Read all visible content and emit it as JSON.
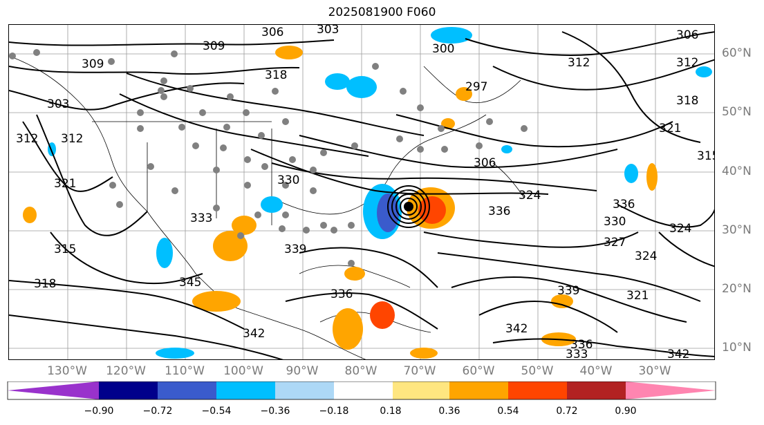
{
  "title": "2025081900 F060",
  "lon_labels": [
    "130°W",
    "120°W",
    "110°W",
    "100°W",
    "90°W",
    "80°W",
    "70°W",
    "60°W",
    "50°W",
    "40°W",
    "30°W"
  ],
  "lat_labels": [
    "60°N",
    "50°N",
    "40°N",
    "30°N",
    "20°N",
    "10°N"
  ],
  "contour_labels": [
    "306",
    "303",
    "309",
    "309",
    "303",
    "318",
    "312",
    "321",
    "315",
    "318",
    "312",
    "330",
    "333",
    "339",
    "345",
    "342",
    "336",
    "324",
    "306",
    "297",
    "324",
    "336",
    "327",
    "324",
    "321",
    "318",
    "312",
    "336",
    "330",
    "342",
    "339",
    "336",
    "333",
    "342",
    "321",
    "315",
    "312",
    "306",
    "300"
  ],
  "colorbar": {
    "ticks": [
      "−0.90",
      "−0.72",
      "−0.54",
      "−0.36",
      "−0.18",
      "0.18",
      "0.36",
      "0.54",
      "0.72",
      "0.90"
    ],
    "colors": [
      "#9932cc",
      "#00008b",
      "#3a5bcc",
      "#00bfff",
      "#add8f6",
      "#ffffff",
      "#ffe680",
      "#ffa500",
      "#ff4500",
      "#b22222",
      "#ff85b0"
    ]
  }
}
